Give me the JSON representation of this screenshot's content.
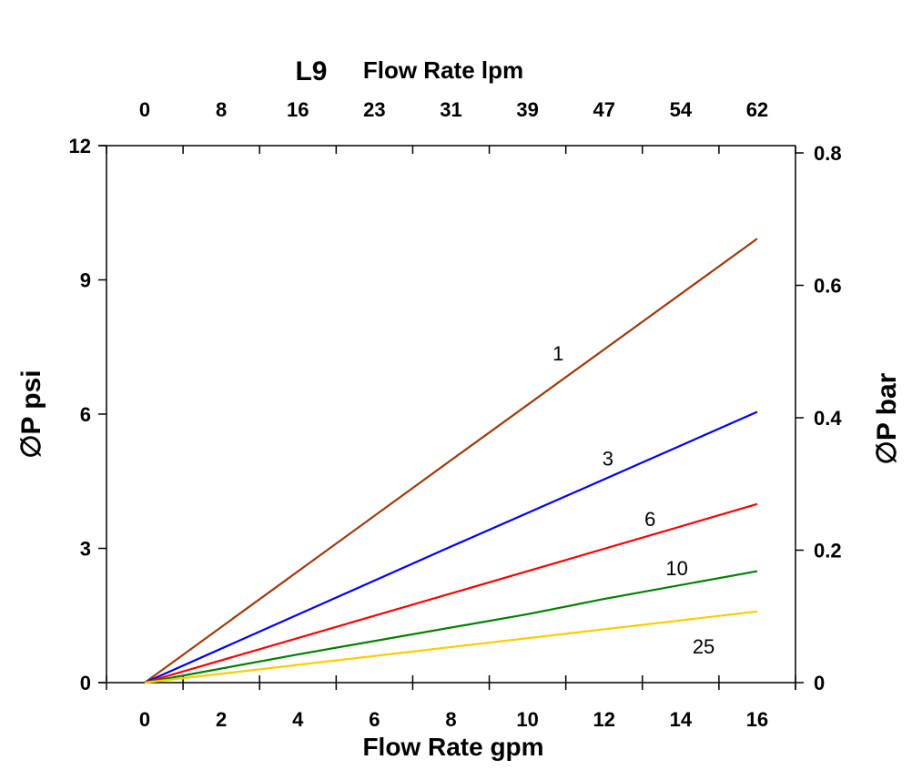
{
  "chart_data": {
    "type": "line",
    "top_title_prefix": "L9",
    "top_title": "Flow Rate lpm",
    "xlabel": "Flow Rate gpm",
    "ylabel_left": "∅P psi",
    "ylabel_right": "∅P bar",
    "xlim": [
      -1,
      17
    ],
    "ylim": [
      0,
      12
    ],
    "ylim_right": [
      0,
      0.811
    ],
    "x_ticks": [
      0,
      2,
      4,
      6,
      8,
      10,
      12,
      14,
      16
    ],
    "x_tick_labels": [
      "0",
      "2",
      "4",
      "6",
      "8",
      "10",
      "12",
      "14",
      "16"
    ],
    "top_tick_labels": [
      "0",
      "8",
      "16",
      "23",
      "31",
      "39",
      "47",
      "54",
      "62"
    ],
    "y_ticks": [
      0,
      3,
      6,
      9,
      12
    ],
    "y_tick_labels": [
      "0",
      "3",
      "6",
      "9",
      "12"
    ],
    "y_right_ticks": [
      0,
      0.2,
      0.4,
      0.6,
      0.8
    ],
    "y_right_tick_labels": [
      "0",
      "0.2",
      "0.4",
      "0.6",
      "0.8"
    ],
    "grid": false,
    "series": [
      {
        "name": "1",
        "color": "#a0380a",
        "x": [
          0,
          8,
          16
        ],
        "y": [
          0,
          4.97,
          9.92
        ],
        "label_at": [
          10.8,
          7.2
        ]
      },
      {
        "name": "3",
        "color": "#0000ff",
        "x": [
          0,
          8,
          10,
          16
        ],
        "y": [
          0,
          3.04,
          3.79,
          6.05
        ],
        "label_at": [
          12.1,
          4.85
        ]
      },
      {
        "name": "6",
        "color": "#ff0000",
        "x": [
          0,
          10,
          16
        ],
        "y": [
          0,
          2.49,
          3.99
        ],
        "label_at": [
          13.2,
          3.5
        ]
      },
      {
        "name": "10",
        "color": "#008000",
        "x": [
          0,
          4,
          10,
          12,
          16
        ],
        "y": [
          0,
          0.63,
          1.53,
          1.87,
          2.49
        ],
        "label_at": [
          13.9,
          2.4
        ]
      },
      {
        "name": "25",
        "color": "#ffcc00",
        "x": [
          0,
          16
        ],
        "y": [
          0,
          1.59
        ],
        "label_at": [
          14.6,
          0.65
        ]
      }
    ]
  }
}
